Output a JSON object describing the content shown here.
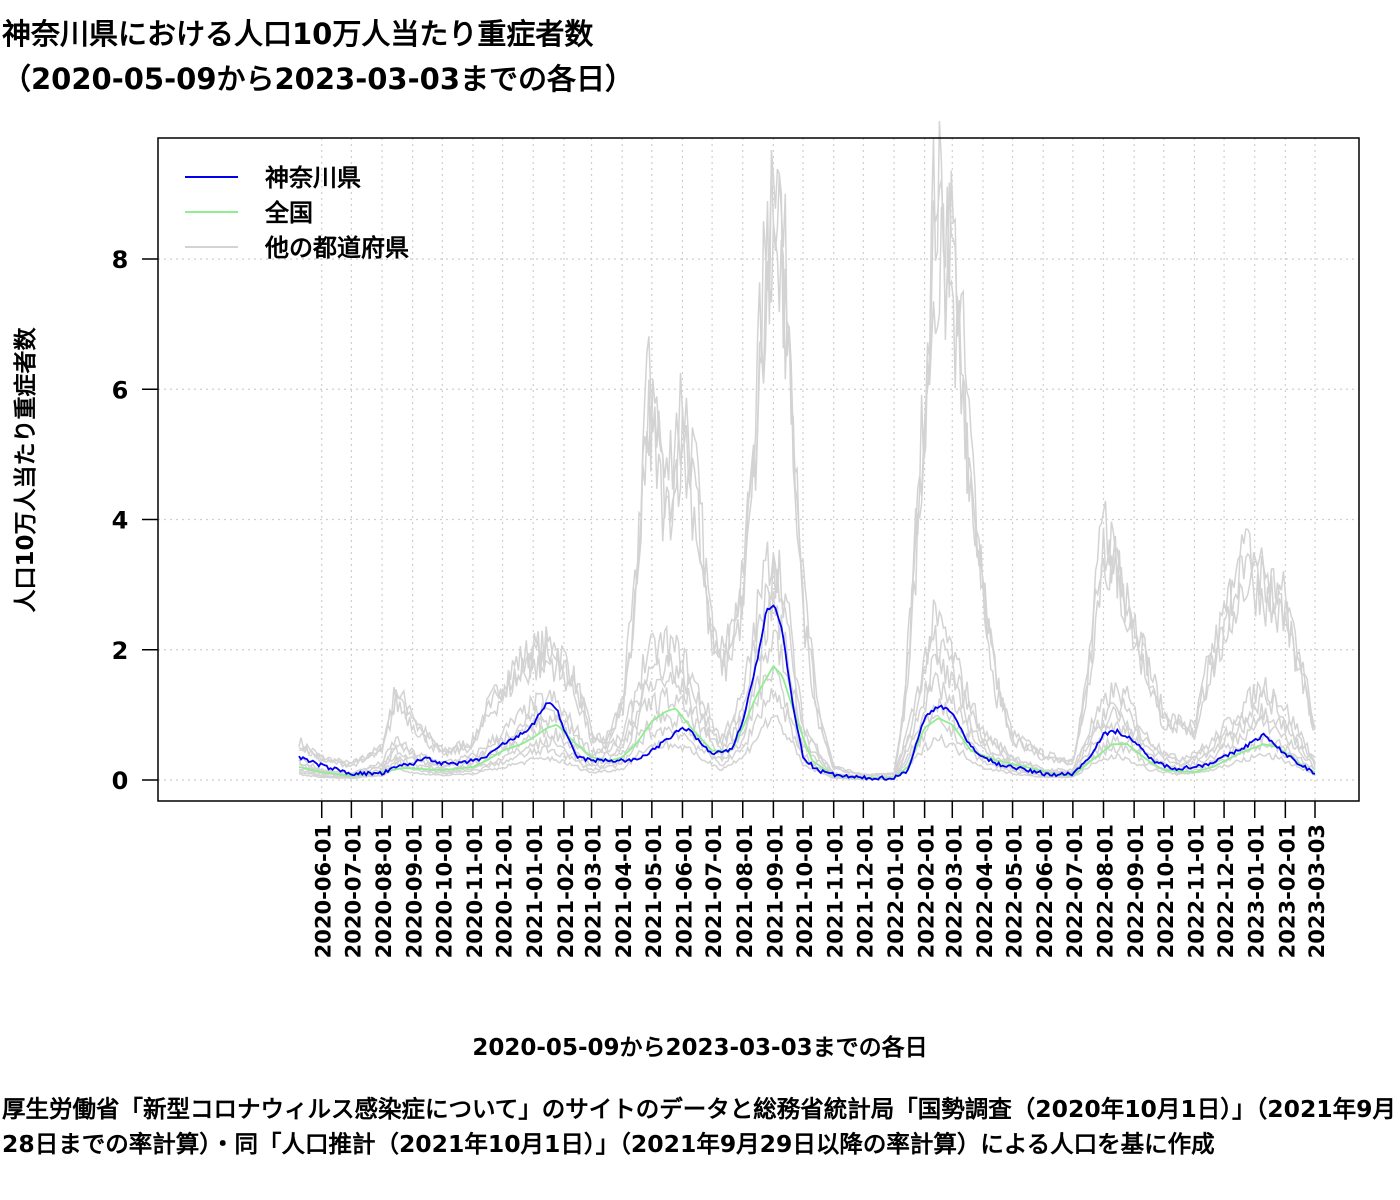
{
  "title_line1": "神奈川県における人口10万人当たり重症者数",
  "title_line2": "（2020-05-09から2023-03-03までの各日）",
  "xlabel": "2020-05-09から2023-03-03までの各日",
  "caption": "厚生労働省「新型コロナウィルス感染症について」のサイトのデータと総務省統計局「国勢調査（2020年10月1日）」（2021年9月28日までの率計算）・同「人口推計（2021年10月1日）」（2021年9月29日以降の率計算）による人口を基に作成",
  "chart_data": {
    "type": "line",
    "title": "神奈川県における人口10万人当たり重症者数（2020-05-09から2023-03-03までの各日）",
    "xlabel": "2020-05-09から2023-03-03までの各日",
    "ylabel": "人口10万人当たり重症者数",
    "xlim": [
      "2020-05-09",
      "2023-03-03"
    ],
    "ylim": [
      0,
      9.5
    ],
    "yticks": [
      0,
      2,
      4,
      6,
      8
    ],
    "xticks": [
      "2020-06-01",
      "2020-07-01",
      "2020-08-01",
      "2020-09-01",
      "2020-10-01",
      "2020-11-01",
      "2020-12-01",
      "2021-01-01",
      "2021-02-01",
      "2021-03-01",
      "2021-04-01",
      "2021-05-01",
      "2021-06-01",
      "2021-07-01",
      "2021-08-01",
      "2021-09-01",
      "2021-10-01",
      "2021-11-01",
      "2021-12-01",
      "2022-01-01",
      "2022-02-01",
      "2022-03-01",
      "2022-04-01",
      "2022-05-01",
      "2022-06-01",
      "2022-07-01",
      "2022-08-01",
      "2022-09-01",
      "2022-10-01",
      "2022-11-01",
      "2022-12-01",
      "2023-01-01",
      "2023-02-01",
      "2023-03-03"
    ],
    "grid": true,
    "legend_position": "top-left",
    "series": [
      {
        "name": "神奈川県",
        "color": "#0000ee",
        "points": [
          [
            "2020-05-09",
            0.35
          ],
          [
            "2020-06-01",
            0.22
          ],
          [
            "2020-07-01",
            0.1
          ],
          [
            "2020-08-01",
            0.1
          ],
          [
            "2020-08-20",
            0.22
          ],
          [
            "2020-09-01",
            0.25
          ],
          [
            "2020-09-15",
            0.35
          ],
          [
            "2020-10-01",
            0.25
          ],
          [
            "2020-10-20",
            0.25
          ],
          [
            "2020-11-01",
            0.3
          ],
          [
            "2020-11-15",
            0.35
          ],
          [
            "2020-12-01",
            0.55
          ],
          [
            "2020-12-15",
            0.65
          ],
          [
            "2021-01-01",
            0.85
          ],
          [
            "2021-01-15",
            1.2
          ],
          [
            "2021-01-25",
            1.1
          ],
          [
            "2021-02-01",
            0.75
          ],
          [
            "2021-02-15",
            0.35
          ],
          [
            "2021-03-01",
            0.3
          ],
          [
            "2021-03-15",
            0.3
          ],
          [
            "2021-04-01",
            0.3
          ],
          [
            "2021-04-15",
            0.3
          ],
          [
            "2021-05-01",
            0.45
          ],
          [
            "2021-05-15",
            0.6
          ],
          [
            "2021-06-01",
            0.8
          ],
          [
            "2021-06-10",
            0.75
          ],
          [
            "2021-06-20",
            0.55
          ],
          [
            "2021-07-01",
            0.4
          ],
          [
            "2021-07-20",
            0.45
          ],
          [
            "2021-08-01",
            0.9
          ],
          [
            "2021-08-15",
            1.8
          ],
          [
            "2021-08-25",
            2.6
          ],
          [
            "2021-09-01",
            2.7
          ],
          [
            "2021-09-10",
            2.3
          ],
          [
            "2021-09-20",
            1.2
          ],
          [
            "2021-10-01",
            0.35
          ],
          [
            "2021-10-15",
            0.15
          ],
          [
            "2021-11-01",
            0.08
          ],
          [
            "2021-11-15",
            0.05
          ],
          [
            "2021-12-01",
            0.03
          ],
          [
            "2021-12-15",
            0.03
          ],
          [
            "2022-01-01",
            0.03
          ],
          [
            "2022-01-15",
            0.15
          ],
          [
            "2022-02-01",
            0.95
          ],
          [
            "2022-02-15",
            1.15
          ],
          [
            "2022-03-01",
            1.05
          ],
          [
            "2022-03-15",
            0.6
          ],
          [
            "2022-04-01",
            0.35
          ],
          [
            "2022-04-15",
            0.25
          ],
          [
            "2022-05-01",
            0.2
          ],
          [
            "2022-05-15",
            0.15
          ],
          [
            "2022-06-01",
            0.1
          ],
          [
            "2022-06-15",
            0.08
          ],
          [
            "2022-07-01",
            0.1
          ],
          [
            "2022-07-15",
            0.3
          ],
          [
            "2022-08-01",
            0.7
          ],
          [
            "2022-08-15",
            0.75
          ],
          [
            "2022-09-01",
            0.6
          ],
          [
            "2022-09-15",
            0.35
          ],
          [
            "2022-10-01",
            0.22
          ],
          [
            "2022-10-15",
            0.18
          ],
          [
            "2022-11-01",
            0.2
          ],
          [
            "2022-11-15",
            0.25
          ],
          [
            "2022-12-01",
            0.35
          ],
          [
            "2022-12-15",
            0.45
          ],
          [
            "2023-01-01",
            0.6
          ],
          [
            "2023-01-10",
            0.7
          ],
          [
            "2023-01-20",
            0.55
          ],
          [
            "2023-02-01",
            0.4
          ],
          [
            "2023-02-15",
            0.25
          ],
          [
            "2023-03-03",
            0.1
          ]
        ]
      },
      {
        "name": "全国",
        "color": "#90ee90",
        "points": [
          [
            "2020-05-09",
            0.2
          ],
          [
            "2020-06-01",
            0.12
          ],
          [
            "2020-07-01",
            0.06
          ],
          [
            "2020-08-01",
            0.12
          ],
          [
            "2020-08-20",
            0.18
          ],
          [
            "2020-09-01",
            0.18
          ],
          [
            "2020-10-01",
            0.15
          ],
          [
            "2020-11-01",
            0.2
          ],
          [
            "2020-11-15",
            0.3
          ],
          [
            "2020-12-01",
            0.45
          ],
          [
            "2020-12-20",
            0.55
          ],
          [
            "2021-01-01",
            0.65
          ],
          [
            "2021-01-15",
            0.8
          ],
          [
            "2021-01-25",
            0.85
          ],
          [
            "2021-02-10",
            0.6
          ],
          [
            "2021-03-01",
            0.35
          ],
          [
            "2021-03-20",
            0.3
          ],
          [
            "2021-04-01",
            0.35
          ],
          [
            "2021-04-15",
            0.55
          ],
          [
            "2021-05-01",
            0.9
          ],
          [
            "2021-05-15",
            1.05
          ],
          [
            "2021-05-25",
            1.1
          ],
          [
            "2021-06-10",
            0.8
          ],
          [
            "2021-07-01",
            0.45
          ],
          [
            "2021-07-20",
            0.45
          ],
          [
            "2021-08-01",
            0.8
          ],
          [
            "2021-08-15",
            1.3
          ],
          [
            "2021-09-01",
            1.75
          ],
          [
            "2021-09-10",
            1.6
          ],
          [
            "2021-09-25",
            0.9
          ],
          [
            "2021-10-10",
            0.3
          ],
          [
            "2021-11-01",
            0.07
          ],
          [
            "2021-12-01",
            0.03
          ],
          [
            "2022-01-01",
            0.03
          ],
          [
            "2022-01-15",
            0.2
          ],
          [
            "2022-02-01",
            0.8
          ],
          [
            "2022-02-15",
            0.95
          ],
          [
            "2022-03-01",
            0.85
          ],
          [
            "2022-03-20",
            0.45
          ],
          [
            "2022-04-15",
            0.3
          ],
          [
            "2022-05-15",
            0.2
          ],
          [
            "2022-06-15",
            0.08
          ],
          [
            "2022-07-01",
            0.07
          ],
          [
            "2022-07-20",
            0.3
          ],
          [
            "2022-08-10",
            0.55
          ],
          [
            "2022-08-25",
            0.55
          ],
          [
            "2022-09-15",
            0.3
          ],
          [
            "2022-10-01",
            0.15
          ],
          [
            "2022-11-01",
            0.12
          ],
          [
            "2022-11-20",
            0.2
          ],
          [
            "2022-12-15",
            0.4
          ],
          [
            "2023-01-10",
            0.55
          ],
          [
            "2023-01-25",
            0.5
          ],
          [
            "2023-02-15",
            0.25
          ],
          [
            "2023-03-03",
            0.12
          ]
        ]
      }
    ],
    "other_prefectures": {
      "name": "他の都道府県",
      "color": "#d3d3d3",
      "upper_envelope": [
        [
          "2020-05-09",
          0.6
        ],
        [
          "2020-06-01",
          0.35
        ],
        [
          "2020-07-01",
          0.25
        ],
        [
          "2020-08-01",
          0.5
        ],
        [
          "2020-08-15",
          1.4
        ],
        [
          "2020-09-01",
          1.0
        ],
        [
          "2020-09-15",
          0.7
        ],
        [
          "2020-10-01",
          0.45
        ],
        [
          "2020-11-01",
          0.6
        ],
        [
          "2020-11-15",
          1.1
        ],
        [
          "2020-12-01",
          1.5
        ],
        [
          "2020-12-15",
          1.8
        ],
        [
          "2021-01-01",
          2.0
        ],
        [
          "2021-01-20",
          2.1
        ],
        [
          "2021-02-05",
          1.8
        ],
        [
          "2021-02-20",
          1.2
        ],
        [
          "2021-03-01",
          0.7
        ],
        [
          "2021-03-15",
          0.6
        ],
        [
          "2021-04-01",
          1.2
        ],
        [
          "2021-04-15",
          3.0
        ],
        [
          "2021-04-25",
          6.1
        ],
        [
          "2021-05-05",
          5.8
        ],
        [
          "2021-05-15",
          4.5
        ],
        [
          "2021-05-25",
          5.5
        ],
        [
          "2021-06-01",
          6.0
        ],
        [
          "2021-06-15",
          4.6
        ],
        [
          "2021-07-01",
          2.3
        ],
        [
          "2021-07-15",
          2.0
        ],
        [
          "2021-08-01",
          3.0
        ],
        [
          "2021-08-15",
          6.0
        ],
        [
          "2021-08-25",
          8.3
        ],
        [
          "2021-09-01",
          9.5
        ],
        [
          "2021-09-08",
          8.8
        ],
        [
          "2021-09-20",
          6.5
        ],
        [
          "2021-10-01",
          3.0
        ],
        [
          "2021-10-15",
          1.2
        ],
        [
          "2021-11-01",
          0.2
        ],
        [
          "2021-12-01",
          0.08
        ],
        [
          "2022-01-01",
          0.1
        ],
        [
          "2022-01-10",
          1.0
        ],
        [
          "2022-01-20",
          3.0
        ],
        [
          "2022-02-01",
          6.0
        ],
        [
          "2022-02-10",
          8.8
        ],
        [
          "2022-02-20",
          9.0
        ],
        [
          "2022-03-01",
          8.5
        ],
        [
          "2022-03-10",
          7.0
        ],
        [
          "2022-03-20",
          5.0
        ],
        [
          "2022-04-01",
          3.2
        ],
        [
          "2022-04-15",
          1.5
        ],
        [
          "2022-05-01",
          0.7
        ],
        [
          "2022-06-01",
          0.4
        ],
        [
          "2022-07-01",
          0.3
        ],
        [
          "2022-07-15",
          1.5
        ],
        [
          "2022-08-01",
          4.0
        ],
        [
          "2022-08-15",
          3.5
        ],
        [
          "2022-09-01",
          2.5
        ],
        [
          "2022-09-15",
          1.8
        ],
        [
          "2022-10-01",
          1.0
        ],
        [
          "2022-11-01",
          0.8
        ],
        [
          "2022-11-15",
          1.8
        ],
        [
          "2022-12-01",
          2.5
        ],
        [
          "2022-12-20",
          3.5
        ],
        [
          "2023-01-05",
          3.4
        ],
        [
          "2023-01-20",
          3.0
        ],
        [
          "2023-02-01",
          2.8
        ],
        [
          "2023-02-15",
          2.0
        ],
        [
          "2023-03-03",
          0.8
        ]
      ],
      "mid_envelope": [
        [
          "2020-05-09",
          0.3
        ],
        [
          "2020-06-01",
          0.15
        ],
        [
          "2020-07-01",
          0.1
        ],
        [
          "2020-08-01",
          0.25
        ],
        [
          "2020-08-15",
          0.6
        ],
        [
          "2020-09-01",
          0.4
        ],
        [
          "2020-10-01",
          0.25
        ],
        [
          "2020-11-01",
          0.35
        ],
        [
          "2020-12-01",
          0.7
        ],
        [
          "2021-01-01",
          1.1
        ],
        [
          "2021-01-20",
          1.2
        ],
        [
          "2021-02-10",
          0.8
        ],
        [
          "2021-03-01",
          0.4
        ],
        [
          "2021-04-01",
          0.6
        ],
        [
          "2021-04-25",
          1.8
        ],
        [
          "2021-05-15",
          2.0
        ],
        [
          "2021-06-01",
          1.8
        ],
        [
          "2021-06-20",
          1.2
        ],
        [
          "2021-07-10",
          0.6
        ],
        [
          "2021-08-01",
          1.2
        ],
        [
          "2021-08-20",
          2.8
        ],
        [
          "2021-09-01",
          3.5
        ],
        [
          "2021-09-15",
          2.5
        ],
        [
          "2021-10-01",
          0.8
        ],
        [
          "2021-11-01",
          0.1
        ],
        [
          "2021-12-01",
          0.04
        ],
        [
          "2022-01-01",
          0.05
        ],
        [
          "2022-01-20",
          1.0
        ],
        [
          "2022-02-10",
          2.3
        ],
        [
          "2022-02-20",
          2.2
        ],
        [
          "2022-03-10",
          1.5
        ],
        [
          "2022-04-01",
          0.7
        ],
        [
          "2022-05-01",
          0.35
        ],
        [
          "2022-06-01",
          0.15
        ],
        [
          "2022-07-01",
          0.15
        ],
        [
          "2022-07-20",
          0.8
        ],
        [
          "2022-08-10",
          1.3
        ],
        [
          "2022-08-25",
          1.2
        ],
        [
          "2022-09-15",
          0.6
        ],
        [
          "2022-10-15",
          0.3
        ],
        [
          "2022-11-15",
          0.5
        ],
        [
          "2022-12-15",
          1.0
        ],
        [
          "2023-01-10",
          1.4
        ],
        [
          "2023-01-25",
          1.2
        ],
        [
          "2023-02-15",
          0.7
        ],
        [
          "2023-03-03",
          0.3
        ]
      ]
    }
  },
  "legend": [
    {
      "label": "神奈川県",
      "color": "#0000ee"
    },
    {
      "label": "全国",
      "color": "#90ee90"
    },
    {
      "label": "他の都道府県",
      "color": "#d3d3d3"
    }
  ]
}
